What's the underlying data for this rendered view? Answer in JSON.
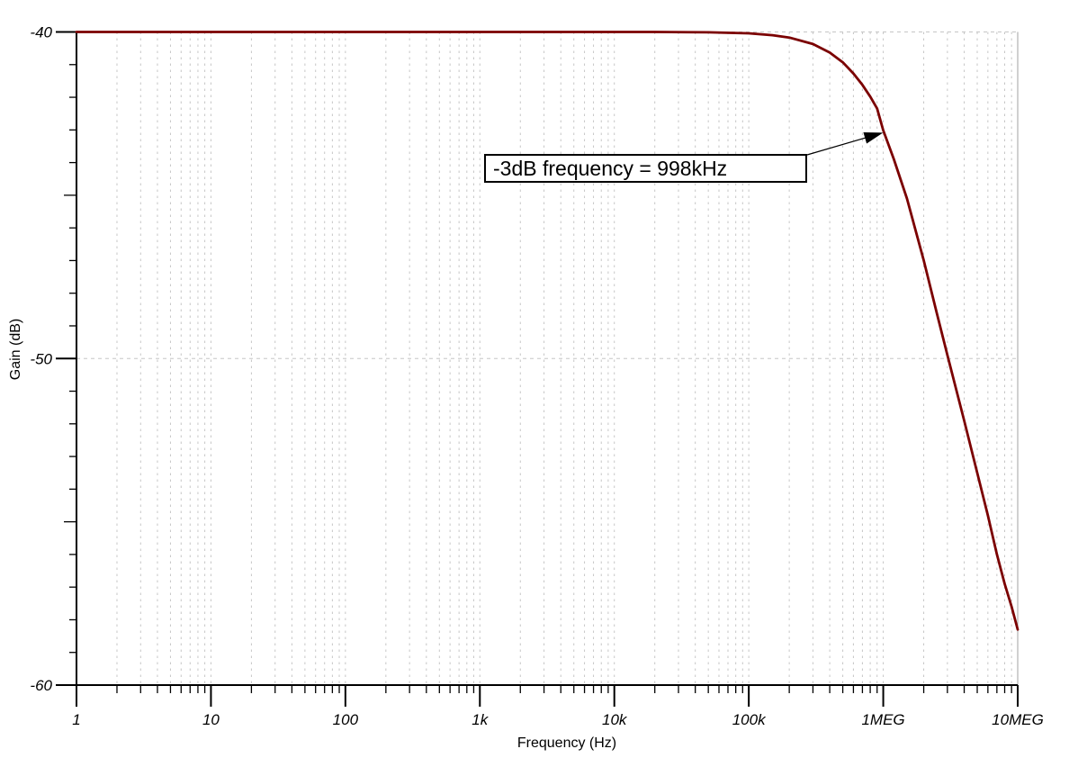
{
  "chart_data": {
    "type": "line",
    "title": "",
    "xlabel": "Frequency (Hz)",
    "ylabel": "Gain (dB)",
    "x_scale": "log",
    "xlim": [
      1,
      10000000
    ],
    "ylim": [
      -60,
      -40
    ],
    "grid": {
      "vertical": "dashed at every log minor and decade",
      "horizontal": "dashed at 10 dB majors",
      "right_border": "solid"
    },
    "x_ticks": [
      {
        "value": 1,
        "label": "1"
      },
      {
        "value": 10,
        "label": "10"
      },
      {
        "value": 100,
        "label": "100"
      },
      {
        "value": 1000,
        "label": "1k"
      },
      {
        "value": 10000,
        "label": "10k"
      },
      {
        "value": 100000,
        "label": "100k"
      },
      {
        "value": 1000000,
        "label": "1MEG"
      },
      {
        "value": 10000000,
        "label": "10MEG"
      }
    ],
    "y_ticks": [
      {
        "value": -40,
        "label": "-40"
      },
      {
        "value": -50,
        "label": "-50"
      },
      {
        "value": -60,
        "label": "-60"
      }
    ],
    "y_minor_step_db": 1,
    "y_medium_step_db": 5,
    "series": [
      {
        "name": "gain",
        "color": "#7b0000",
        "points": [
          [
            1,
            -40
          ],
          [
            10,
            -40
          ],
          [
            100,
            -40
          ],
          [
            1000,
            -40
          ],
          [
            10000,
            -40
          ],
          [
            20000,
            -40
          ],
          [
            50000,
            -40.01
          ],
          [
            100000,
            -40.04
          ],
          [
            150000,
            -40.1
          ],
          [
            200000,
            -40.17
          ],
          [
            300000,
            -40.37
          ],
          [
            400000,
            -40.63
          ],
          [
            500000,
            -40.93
          ],
          [
            600000,
            -41.27
          ],
          [
            700000,
            -41.62
          ],
          [
            800000,
            -41.98
          ],
          [
            900000,
            -42.34
          ],
          [
            998000,
            -43.0
          ],
          [
            1200000,
            -43.9
          ],
          [
            1500000,
            -45.1
          ],
          [
            2000000,
            -47.0
          ],
          [
            2500000,
            -48.6
          ],
          [
            3000000,
            -49.9
          ],
          [
            4000000,
            -51.9
          ],
          [
            5000000,
            -53.5
          ],
          [
            6000000,
            -54.8
          ],
          [
            7000000,
            -56.0
          ],
          [
            8000000,
            -56.9
          ],
          [
            9000000,
            -57.6
          ],
          [
            10000000,
            -58.3
          ]
        ]
      }
    ],
    "annotation": {
      "text": "-3dB frequency = 998kHz",
      "arrow_points_to": {
        "freq_hz": 998000,
        "gain_db": -43
      }
    }
  },
  "colors": {
    "curve": "#7b0000",
    "grid": "#c6c6c6",
    "right_border": "#b0b0b0",
    "axis": "#000000",
    "background": "#ffffff",
    "annotation_border": "#000000"
  }
}
